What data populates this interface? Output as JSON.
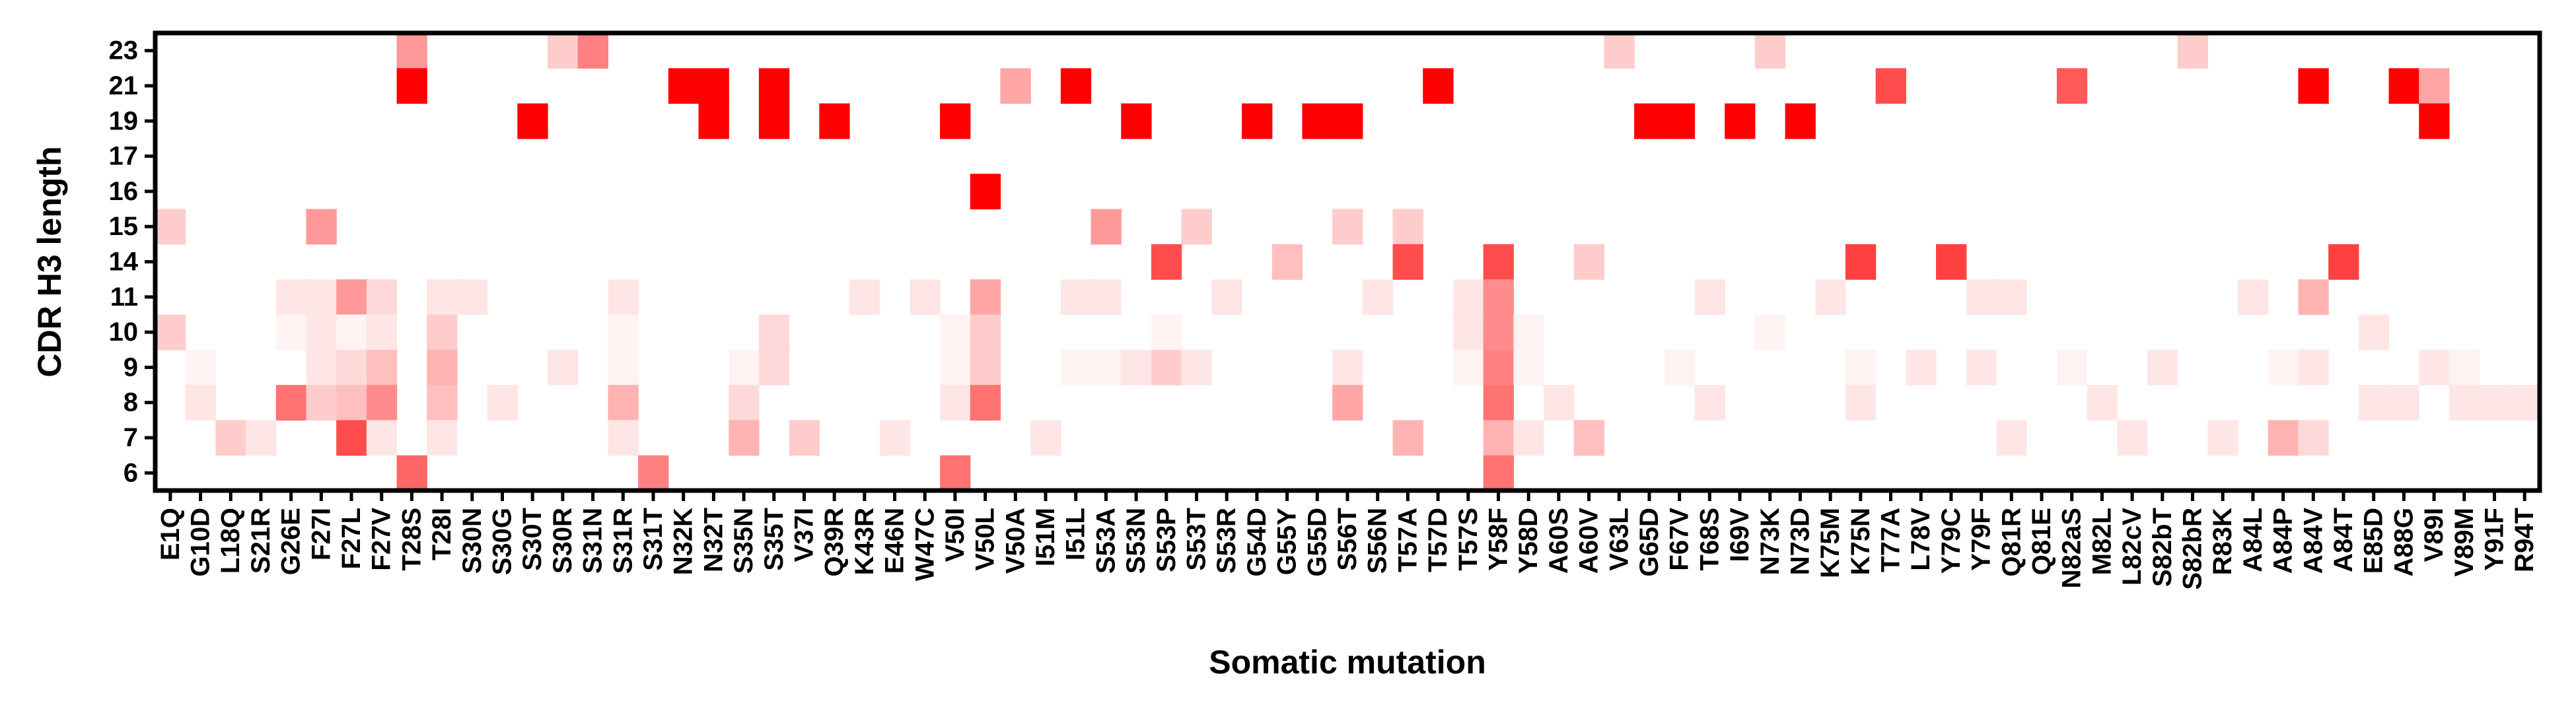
{
  "chart_data": {
    "type": "heatmap",
    "title": "",
    "xlabel": "Somatic mutation",
    "ylabel": "CDR H3 length",
    "rows_top_to_bottom": [
      "23",
      "21",
      "19",
      "17",
      "16",
      "15",
      "14",
      "11",
      "10",
      "9",
      "8",
      "7",
      "6"
    ],
    "columns": [
      "E1Q",
      "G10D",
      "L18Q",
      "S21R",
      "G26E",
      "F27I",
      "F27L",
      "F27V",
      "T28S",
      "T28I",
      "S30N",
      "S30G",
      "S30T",
      "S30R",
      "S31N",
      "S31R",
      "S31T",
      "N32K",
      "N32T",
      "S35N",
      "S35T",
      "V37I",
      "Q39R",
      "K43R",
      "E46N",
      "W47C",
      "V50I",
      "V50L",
      "V50A",
      "I51M",
      "I51L",
      "S53A",
      "S53N",
      "S53P",
      "S53T",
      "S53R",
      "G54D",
      "G55Y",
      "G55D",
      "S56T",
      "S56N",
      "T57A",
      "T57D",
      "T57S",
      "Y58F",
      "Y58D",
      "A60S",
      "A60V",
      "V63L",
      "G65D",
      "F67V",
      "T68S",
      "I69V",
      "N73K",
      "N73D",
      "K75M",
      "K75N",
      "T77A",
      "L78V",
      "Y79C",
      "Y79F",
      "Q81R",
      "Q81E",
      "N82aS",
      "M82L",
      "L82cV",
      "S82bT",
      "S82bR",
      "R83K",
      "A84L",
      "A84P",
      "A84V",
      "A84T",
      "E85D",
      "A88G",
      "V89I",
      "V89M",
      "Y91F",
      "R94T"
    ],
    "tick_labels_x": [
      "E1Q",
      "G10D",
      "L18Q",
      "S21R",
      "G26E",
      "F27I",
      "F27L",
      "F27V",
      "T28S",
      "T28I",
      "S30N",
      "S30G",
      "S30T",
      "S30R",
      "S31N",
      "S31R",
      "S31T",
      "N32K",
      "N32T",
      "S35N",
      "S35T",
      "V37I",
      "Q39R",
      "K43R",
      "E46N",
      "W47C",
      "V50I",
      "V50L",
      "V50A",
      "I51M",
      "I51L",
      "S53A",
      "S53N",
      "S53P",
      "S53T",
      "S53R",
      "G54D",
      "G55Y",
      "G55D",
      "S56T",
      "S56N",
      "T57A",
      "T57D",
      "T57S",
      "Y58F",
      "Y58D",
      "A60S",
      "A60V",
      "V63L",
      "G65D",
      "F67V",
      "T68S",
      "I69V",
      "N73K",
      "N73D",
      "K75M",
      "K75N",
      "T77A",
      "L78V",
      "Y79C",
      "Y79F",
      "Q81R",
      "Q81E",
      "N82aS",
      "M82L",
      "L82cV",
      "S82bT",
      "S82bR",
      "R83K",
      "A84L",
      "A84P",
      "A84V",
      "A84T",
      "E85D",
      "A88G",
      "V89I",
      "V89M",
      "Y91F",
      "R94T"
    ],
    "value_range": [
      0,
      1
    ],
    "color_low": "#ffffff",
    "color_high": "#ff0000",
    "colorbar": false,
    "grid": false,
    "cells": {
      "23": [
        [
          "T28S",
          0.4
        ],
        [
          "S30R",
          0.2
        ],
        [
          "S31N",
          0.5
        ],
        [
          "V63L",
          0.2
        ],
        [
          "N73K",
          0.2
        ],
        [
          "S82bR",
          0.2
        ]
      ],
      "21": [
        [
          "T28S",
          1.0
        ],
        [
          "N32K",
          1.0
        ],
        [
          "N32T",
          1.0
        ],
        [
          "S35T",
          1.0
        ],
        [
          "V50A",
          0.35
        ],
        [
          "I51L",
          1.0
        ],
        [
          "T57D",
          1.0
        ],
        [
          "T77A",
          0.7
        ],
        [
          "N82aS",
          0.65
        ],
        [
          "A84V",
          1.0
        ],
        [
          "A88G",
          1.0
        ],
        [
          "V89I",
          0.35
        ]
      ],
      "19": [
        [
          "S30T",
          1.0
        ],
        [
          "N32T",
          1.0
        ],
        [
          "S35T",
          1.0
        ],
        [
          "Q39R",
          1.0
        ],
        [
          "V50I",
          1.0
        ],
        [
          "S53N",
          1.0
        ],
        [
          "G54D",
          1.0
        ],
        [
          "G55D",
          1.0
        ],
        [
          "S56T",
          1.0
        ],
        [
          "G65D",
          1.0
        ],
        [
          "F67V",
          1.0
        ],
        [
          "I69V",
          1.0
        ],
        [
          "N73D",
          1.0
        ],
        [
          "V89I",
          1.0
        ]
      ],
      "17": [],
      "16": [
        [
          "V50L",
          1.0
        ]
      ],
      "15": [
        [
          "E1Q",
          0.2
        ],
        [
          "F27I",
          0.4
        ],
        [
          "S53A",
          0.4
        ],
        [
          "S53T",
          0.2
        ],
        [
          "S56T",
          0.2
        ],
        [
          "T57A",
          0.2
        ]
      ],
      "14": [
        [
          "S53P",
          0.7
        ],
        [
          "G55Y",
          0.25
        ],
        [
          "T57A",
          0.7
        ],
        [
          "Y58F",
          0.7
        ],
        [
          "A60V",
          0.2
        ],
        [
          "K75N",
          0.75
        ],
        [
          "Y79C",
          0.75
        ],
        [
          "A84T",
          0.75
        ]
      ],
      "11": [
        [
          "G26E",
          0.1
        ],
        [
          "F27I",
          0.1
        ],
        [
          "F27L",
          0.4
        ],
        [
          "F27V",
          0.15
        ],
        [
          "T28I",
          0.1
        ],
        [
          "S30N",
          0.1
        ],
        [
          "S31R",
          0.1
        ],
        [
          "K43R",
          0.1
        ],
        [
          "W47C",
          0.1
        ],
        [
          "V50L",
          0.35
        ],
        [
          "I51L",
          0.1
        ],
        [
          "S53A",
          0.1
        ],
        [
          "S53R",
          0.1
        ],
        [
          "S56N",
          0.1
        ],
        [
          "T57S",
          0.1
        ],
        [
          "Y58F",
          0.45
        ],
        [
          "T68S",
          0.1
        ],
        [
          "K75M",
          0.1
        ],
        [
          "Y79F",
          0.1
        ],
        [
          "Q81R",
          0.1
        ],
        [
          "A84L",
          0.1
        ],
        [
          "A84V",
          0.3
        ]
      ],
      "10": [
        [
          "E1Q",
          0.2
        ],
        [
          "G26E",
          0.05
        ],
        [
          "F27I",
          0.1
        ],
        [
          "F27L",
          0.05
        ],
        [
          "F27V",
          0.1
        ],
        [
          "T28I",
          0.2
        ],
        [
          "S31R",
          0.05
        ],
        [
          "S35T",
          0.15
        ],
        [
          "V50I",
          0.05
        ],
        [
          "V50L",
          0.2
        ],
        [
          "S53P",
          0.05
        ],
        [
          "T57S",
          0.1
        ],
        [
          "Y58F",
          0.45
        ],
        [
          "Y58D",
          0.05
        ],
        [
          "N73K",
          0.05
        ],
        [
          "E85D",
          0.1
        ]
      ],
      "9": [
        [
          "G10D",
          0.05
        ],
        [
          "F27I",
          0.1
        ],
        [
          "F27L",
          0.15
        ],
        [
          "F27V",
          0.25
        ],
        [
          "T28I",
          0.3
        ],
        [
          "S30R",
          0.1
        ],
        [
          "S31R",
          0.05
        ],
        [
          "S35N",
          0.05
        ],
        [
          "S35T",
          0.15
        ],
        [
          "V50I",
          0.05
        ],
        [
          "V50L",
          0.2
        ],
        [
          "I51L",
          0.05
        ],
        [
          "S53A",
          0.05
        ],
        [
          "S53N",
          0.1
        ],
        [
          "S53P",
          0.2
        ],
        [
          "S53T",
          0.1
        ],
        [
          "S56T",
          0.1
        ],
        [
          "T57S",
          0.05
        ],
        [
          "Y58F",
          0.5
        ],
        [
          "Y58D",
          0.05
        ],
        [
          "F67V",
          0.05
        ],
        [
          "K75N",
          0.05
        ],
        [
          "L78V",
          0.1
        ],
        [
          "Y79F",
          0.1
        ],
        [
          "N82aS",
          0.05
        ],
        [
          "S82bT",
          0.1
        ],
        [
          "A84P",
          0.05
        ],
        [
          "A84V",
          0.1
        ],
        [
          "V89I",
          0.1
        ],
        [
          "V89M",
          0.05
        ]
      ],
      "8": [
        [
          "G10D",
          0.1
        ],
        [
          "G26E",
          0.55
        ],
        [
          "F27I",
          0.2
        ],
        [
          "F27L",
          0.25
        ],
        [
          "F27V",
          0.45
        ],
        [
          "T28I",
          0.25
        ],
        [
          "S30G",
          0.1
        ],
        [
          "S31R",
          0.3
        ],
        [
          "S35N",
          0.15
        ],
        [
          "V50I",
          0.1
        ],
        [
          "V50L",
          0.55
        ],
        [
          "S56T",
          0.35
        ],
        [
          "Y58F",
          0.55
        ],
        [
          "A60S",
          0.1
        ],
        [
          "T68S",
          0.1
        ],
        [
          "K75N",
          0.1
        ],
        [
          "M82L",
          0.1
        ],
        [
          "E85D",
          0.1
        ],
        [
          "A88G",
          0.1
        ],
        [
          "V89M",
          0.1
        ],
        [
          "Y91F",
          0.1
        ],
        [
          "R94T",
          0.1
        ]
      ],
      "7": [
        [
          "L18Q",
          0.2
        ],
        [
          "S21R",
          0.1
        ],
        [
          "F27L",
          0.7
        ],
        [
          "F27V",
          0.1
        ],
        [
          "T28I",
          0.1
        ],
        [
          "S31R",
          0.1
        ],
        [
          "S35N",
          0.3
        ],
        [
          "V37I",
          0.2
        ],
        [
          "E46N",
          0.1
        ],
        [
          "I51M",
          0.1
        ],
        [
          "T57A",
          0.3
        ],
        [
          "Y58F",
          0.3
        ],
        [
          "Y58D",
          0.1
        ],
        [
          "A60V",
          0.25
        ],
        [
          "Q81R",
          0.1
        ],
        [
          "L82cV",
          0.1
        ],
        [
          "R83K",
          0.1
        ],
        [
          "A84P",
          0.3
        ],
        [
          "A84V",
          0.15
        ]
      ],
      "6": [
        [
          "T28S",
          0.6
        ],
        [
          "S31T",
          0.5
        ],
        [
          "V50I",
          0.55
        ],
        [
          "Y58F",
          0.55
        ]
      ]
    }
  }
}
